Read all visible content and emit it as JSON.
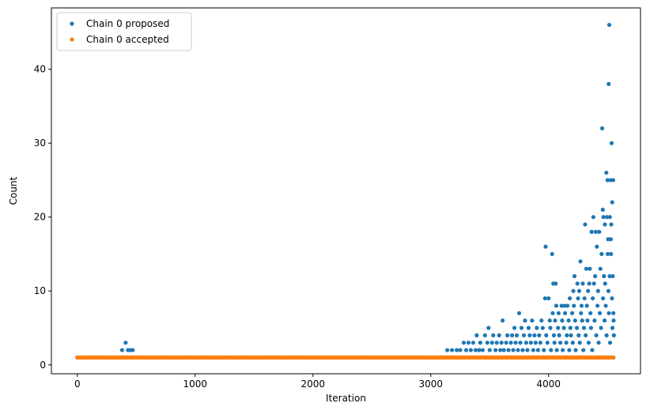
{
  "chart_data": {
    "type": "scatter",
    "title": "",
    "xlabel": "Iteration",
    "ylabel": "Count",
    "xlim": [
      -220,
      4780
    ],
    "ylim": [
      -1.2,
      48.3
    ],
    "xticks": [
      0,
      1000,
      2000,
      3000,
      4000
    ],
    "yticks": [
      0,
      10,
      20,
      30,
      40
    ],
    "grid": false,
    "legend_position": "top-left",
    "n_iterations": 4550,
    "series": [
      {
        "name": "Chain 0 proposed",
        "color": "#1f77b4",
        "baseline_value": 1,
        "points": [
          [
            380,
            2
          ],
          [
            410,
            3
          ],
          [
            430,
            2
          ],
          [
            450,
            2
          ],
          [
            470,
            2
          ],
          [
            3140,
            2
          ],
          [
            3180,
            2
          ],
          [
            3220,
            2
          ],
          [
            3250,
            2
          ],
          [
            3280,
            3
          ],
          [
            3300,
            2
          ],
          [
            3320,
            3
          ],
          [
            3340,
            2
          ],
          [
            3360,
            3
          ],
          [
            3380,
            2
          ],
          [
            3390,
            4
          ],
          [
            3410,
            2
          ],
          [
            3420,
            3
          ],
          [
            3440,
            2
          ],
          [
            3460,
            4
          ],
          [
            3480,
            3
          ],
          [
            3490,
            5
          ],
          [
            3500,
            2
          ],
          [
            3520,
            3
          ],
          [
            3530,
            4
          ],
          [
            3550,
            2
          ],
          [
            3560,
            3
          ],
          [
            3580,
            4
          ],
          [
            3590,
            2
          ],
          [
            3600,
            3
          ],
          [
            3610,
            6
          ],
          [
            3620,
            2
          ],
          [
            3640,
            3
          ],
          [
            3650,
            4
          ],
          [
            3660,
            2
          ],
          [
            3680,
            3
          ],
          [
            3690,
            4
          ],
          [
            3700,
            2
          ],
          [
            3710,
            5
          ],
          [
            3720,
            3
          ],
          [
            3730,
            4
          ],
          [
            3740,
            2
          ],
          [
            3750,
            7
          ],
          [
            3760,
            3
          ],
          [
            3770,
            5
          ],
          [
            3780,
            2
          ],
          [
            3790,
            4
          ],
          [
            3800,
            6
          ],
          [
            3810,
            3
          ],
          [
            3820,
            2
          ],
          [
            3830,
            5
          ],
          [
            3840,
            4
          ],
          [
            3850,
            3
          ],
          [
            3860,
            6
          ],
          [
            3870,
            2
          ],
          [
            3880,
            4
          ],
          [
            3890,
            3
          ],
          [
            3900,
            5
          ],
          [
            3910,
            2
          ],
          [
            3920,
            4
          ],
          [
            3930,
            3
          ],
          [
            3940,
            6
          ],
          [
            3950,
            5
          ],
          [
            3960,
            2
          ],
          [
            3970,
            9
          ],
          [
            3975,
            16
          ],
          [
            3980,
            4
          ],
          [
            3990,
            3
          ],
          [
            4000,
            9
          ],
          [
            4010,
            6
          ],
          [
            4015,
            5
          ],
          [
            4020,
            2
          ],
          [
            4030,
            15
          ],
          [
            4035,
            7
          ],
          [
            4040,
            11
          ],
          [
            4045,
            4
          ],
          [
            4050,
            3
          ],
          [
            4055,
            6
          ],
          [
            4060,
            11
          ],
          [
            4065,
            8
          ],
          [
            4070,
            2
          ],
          [
            4080,
            5
          ],
          [
            4085,
            7
          ],
          [
            4090,
            4
          ],
          [
            4100,
            3
          ],
          [
            4110,
            8
          ],
          [
            4115,
            6
          ],
          [
            4120,
            2
          ],
          [
            4130,
            5
          ],
          [
            4135,
            8
          ],
          [
            4140,
            7
          ],
          [
            4150,
            3
          ],
          [
            4155,
            4
          ],
          [
            4160,
            8
          ],
          [
            4170,
            6
          ],
          [
            4175,
            2
          ],
          [
            4180,
            9
          ],
          [
            4185,
            5
          ],
          [
            4190,
            4
          ],
          [
            4200,
            7
          ],
          [
            4205,
            3
          ],
          [
            4210,
            10
          ],
          [
            4215,
            8
          ],
          [
            4220,
            12
          ],
          [
            4225,
            6
          ],
          [
            4230,
            2
          ],
          [
            4240,
            5
          ],
          [
            4245,
            11
          ],
          [
            4250,
            9
          ],
          [
            4255,
            4
          ],
          [
            4260,
            10
          ],
          [
            4265,
            3
          ],
          [
            4270,
            14
          ],
          [
            4275,
            7
          ],
          [
            4280,
            8
          ],
          [
            4285,
            6
          ],
          [
            4290,
            11
          ],
          [
            4295,
            2
          ],
          [
            4300,
            5
          ],
          [
            4305,
            9
          ],
          [
            4310,
            19
          ],
          [
            4315,
            4
          ],
          [
            4320,
            13
          ],
          [
            4325,
            8
          ],
          [
            4330,
            6
          ],
          [
            4335,
            10
          ],
          [
            4340,
            3
          ],
          [
            4345,
            11
          ],
          [
            4350,
            13
          ],
          [
            4355,
            7
          ],
          [
            4360,
            5
          ],
          [
            4365,
            18
          ],
          [
            4370,
            2
          ],
          [
            4375,
            9
          ],
          [
            4380,
            20
          ],
          [
            4385,
            11
          ],
          [
            4390,
            6
          ],
          [
            4395,
            12
          ],
          [
            4400,
            18
          ],
          [
            4405,
            4
          ],
          [
            4410,
            16
          ],
          [
            4415,
            8
          ],
          [
            4420,
            10
          ],
          [
            4425,
            3
          ],
          [
            4430,
            18
          ],
          [
            4435,
            7
          ],
          [
            4440,
            13
          ],
          [
            4445,
            5
          ],
          [
            4450,
            15
          ],
          [
            4455,
            32
          ],
          [
            4460,
            21
          ],
          [
            4462,
            9
          ],
          [
            4465,
            20
          ],
          [
            4470,
            12
          ],
          [
            4475,
            6
          ],
          [
            4478,
            19
          ],
          [
            4480,
            11
          ],
          [
            4485,
            8
          ],
          [
            4490,
            26
          ],
          [
            4492,
            4
          ],
          [
            4495,
            20
          ],
          [
            4500,
            25
          ],
          [
            4502,
            15
          ],
          [
            4505,
            17
          ],
          [
            4508,
            10
          ],
          [
            4510,
            38
          ],
          [
            4512,
            7
          ],
          [
            4515,
            46
          ],
          [
            4518,
            12
          ],
          [
            4520,
            20
          ],
          [
            4522,
            3
          ],
          [
            4525,
            25
          ],
          [
            4528,
            17
          ],
          [
            4530,
            15
          ],
          [
            4532,
            19
          ],
          [
            4535,
            30
          ],
          [
            4538,
            9
          ],
          [
            4540,
            22
          ],
          [
            4542,
            5
          ],
          [
            4545,
            12
          ],
          [
            4548,
            25
          ],
          [
            4550,
            7
          ],
          [
            4552,
            6
          ],
          [
            4554,
            4
          ]
        ]
      },
      {
        "name": "Chain 0 accepted",
        "color": "#ff7f0e",
        "baseline_value": 1,
        "points": []
      }
    ]
  }
}
